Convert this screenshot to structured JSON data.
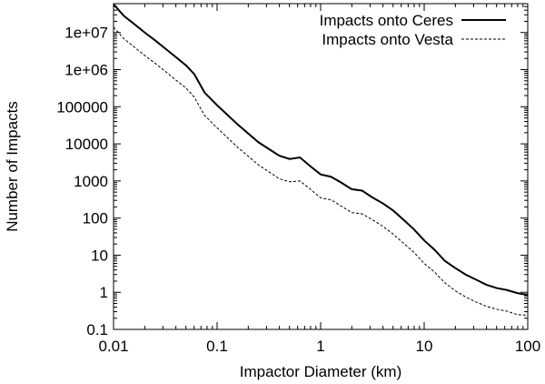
{
  "chart_data": {
    "type": "line",
    "title": "",
    "xlabel": "Impactor Diameter (km)",
    "ylabel": "Number of Impacts",
    "xscale": "log",
    "yscale": "log",
    "xlim": [
      0.01,
      100
    ],
    "ylim": [
      0.1,
      60000000
    ],
    "grid": false,
    "legend_position": "top-right",
    "x_ticks": [
      {
        "value": 0.01,
        "label": "0.01"
      },
      {
        "value": 0.1,
        "label": "0.1"
      },
      {
        "value": 1,
        "label": "1"
      },
      {
        "value": 10,
        "label": "10"
      },
      {
        "value": 100,
        "label": "100"
      }
    ],
    "y_ticks": [
      {
        "value": 0.1,
        "label": "0.1"
      },
      {
        "value": 1,
        "label": "1"
      },
      {
        "value": 10,
        "label": "10"
      },
      {
        "value": 100,
        "label": "100"
      },
      {
        "value": 1000,
        "label": "1000"
      },
      {
        "value": 10000,
        "label": "10000"
      },
      {
        "value": 100000,
        "label": "100000"
      },
      {
        "value": 1000000,
        "label": "1e+06"
      },
      {
        "value": 10000000,
        "label": "1e+07"
      }
    ],
    "series": [
      {
        "name": "Impacts onto Ceres",
        "style": "solid",
        "color": "#000000",
        "x": [
          0.01,
          0.0126,
          0.0158,
          0.02,
          0.0251,
          0.0316,
          0.0398,
          0.0501,
          0.0603,
          0.0758,
          0.1,
          0.1585,
          0.2512,
          0.3981,
          0.5012,
          0.631,
          0.7943,
          1.0,
          1.2589,
          1.5849,
          1.9953,
          2.5119,
          3.1623,
          3.9811,
          5.0119,
          6.3096,
          7.9433,
          10.0,
          12.589,
          15.849,
          19.953,
          25.119,
          31.623,
          39.811,
          50.119,
          63.096,
          79.433,
          100.0
        ],
        "y": [
          58000000,
          28000000,
          17000000,
          10000000,
          6200000,
          3700000,
          2200000,
          1300000,
          750000,
          240000,
          110000,
          33000,
          11000,
          4800,
          3900,
          4300,
          2500,
          1500,
          1300,
          900,
          600,
          550,
          360,
          250,
          160,
          90,
          50,
          25,
          14,
          7,
          4.5,
          3,
          2.2,
          1.6,
          1.3,
          1.15,
          0.95,
          0.85
        ]
      },
      {
        "name": "Impacts onto Vesta",
        "style": "dashed",
        "color": "#000000",
        "x": [
          0.01,
          0.0126,
          0.0158,
          0.02,
          0.0251,
          0.0316,
          0.0398,
          0.0501,
          0.0603,
          0.0758,
          0.1,
          0.1585,
          0.2512,
          0.3981,
          0.5012,
          0.631,
          0.7943,
          1.0,
          1.2589,
          1.5849,
          1.9953,
          2.5119,
          3.1623,
          3.9811,
          5.0119,
          6.3096,
          7.9433,
          10.0,
          12.589,
          15.849,
          19.953,
          25.119,
          31.623,
          39.811,
          50.119,
          63.096,
          79.433,
          100.0
        ],
        "y": [
          14000000,
          6800000,
          4100000,
          2400000,
          1500000,
          900000,
          530000,
          320000,
          180000,
          58000,
          27000,
          8000,
          2700,
          1150,
          950,
          1000,
          600,
          350,
          310,
          210,
          140,
          130,
          90,
          60,
          37,
          21,
          12,
          6,
          3.5,
          1.8,
          1.1,
          0.75,
          0.55,
          0.42,
          0.35,
          0.31,
          0.25,
          0.24
        ]
      }
    ]
  }
}
